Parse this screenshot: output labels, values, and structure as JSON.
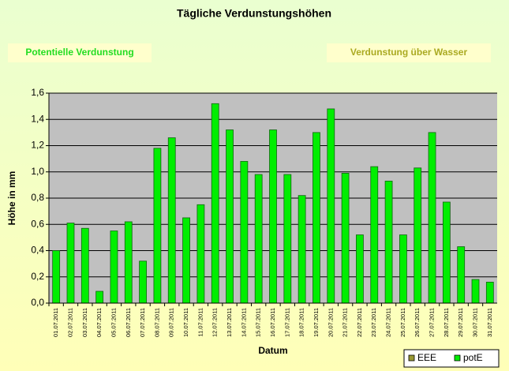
{
  "chart_data": {
    "type": "bar",
    "title": "Tägliche Verdunstungshöhen",
    "annotations": [
      "Potentielle Verdunstung",
      "Verdunstung über Wasser"
    ],
    "y_label": "Höhe in mm",
    "x_label": "Datum",
    "categories": [
      "01.07.2011",
      "02.07.2011",
      "03.07.2011",
      "04.07.2011",
      "05.07.2011",
      "06.07.2011",
      "07.07.2011",
      "08.07.2011",
      "09.07.2011",
      "10.07.2011",
      "11.07.2011",
      "12.07.2011",
      "13.07.2011",
      "14.07.2011",
      "15.07.2011",
      "16.07.2011",
      "17.07.2011",
      "18.07.2011",
      "19.07.2011",
      "20.07.2011",
      "21.07.2011",
      "22.07.2011",
      "23.07.2011",
      "24.07.2011",
      "25.07.2011",
      "26.07.2011",
      "27.07.2011",
      "28.07.2011",
      "29.07.2011",
      "30.07.2011",
      "31.07.2011"
    ],
    "series": [
      {
        "name": "EEE",
        "color": "#999933",
        "values": [
          null,
          null,
          null,
          null,
          null,
          null,
          null,
          null,
          null,
          null,
          null,
          null,
          null,
          null,
          null,
          null,
          null,
          null,
          null,
          null,
          null,
          null,
          null,
          null,
          null,
          null,
          null,
          null,
          null,
          null,
          null
        ]
      },
      {
        "name": "potE",
        "color": "#00ee00",
        "values": [
          0.4,
          0.61,
          0.57,
          0.09,
          0.55,
          0.62,
          0.32,
          1.18,
          1.26,
          0.65,
          0.75,
          1.52,
          1.32,
          1.08,
          0.98,
          1.32,
          0.98,
          0.82,
          1.3,
          1.48,
          0.99,
          0.52,
          1.04,
          0.93,
          0.52,
          1.03,
          1.3,
          0.77,
          0.43,
          0.18,
          0.16
        ]
      }
    ],
    "ylim": [
      0,
      1.6
    ],
    "yticks": [
      {
        "value": 0,
        "label": "0,0"
      },
      {
        "value": 0.2,
        "label": "0,2"
      },
      {
        "value": 0.4,
        "label": "0,4"
      },
      {
        "value": 0.6,
        "label": "0,6"
      },
      {
        "value": 0.8,
        "label": "0,8"
      },
      {
        "value": 1.0,
        "label": "1,0"
      },
      {
        "value": 1.2,
        "label": "1,2"
      },
      {
        "value": 1.4,
        "label": "1,4"
      },
      {
        "value": 1.6,
        "label": "1,6"
      }
    ],
    "grid": true,
    "legend": "bottom-right"
  }
}
